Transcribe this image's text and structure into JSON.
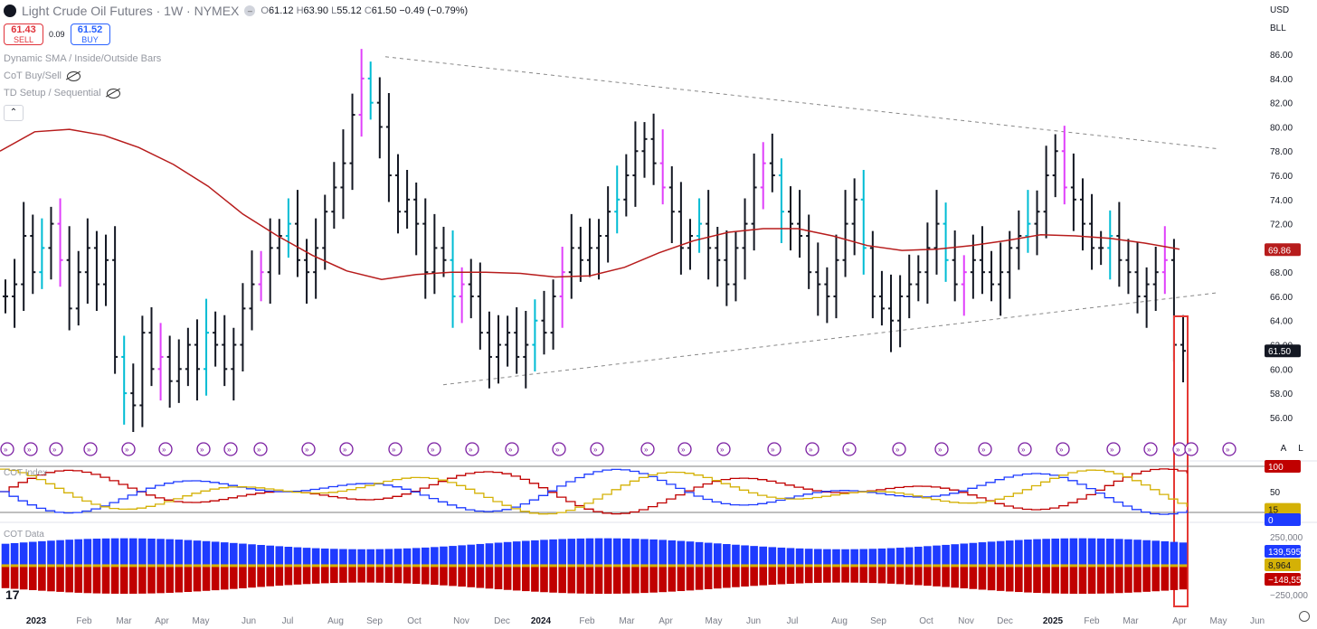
{
  "header": {
    "title": "Light Crude Oil Futures · 1W · NYMEX",
    "ohlc": [
      {
        "k": "O",
        "v": "61.12"
      },
      {
        "k": "H",
        "v": "63.90"
      },
      {
        "k": "L",
        "v": "55.12"
      },
      {
        "k": "C",
        "v": "61.50"
      }
    ],
    "change": "−0.49 (−0.79%)"
  },
  "trade": {
    "sell_price": "61.43",
    "sell_label": "SELL",
    "spread": "0.09",
    "buy_price": "61.52",
    "buy_label": "BUY"
  },
  "indicators": [
    "Dynamic SMA / Inside/Outside Bars",
    "CoT Buy/Sell",
    "TD Setup / Sequential"
  ],
  "scale": {
    "currency": "USD",
    "unit": "BLL"
  },
  "axis_buttons": {
    "auto": "A",
    "log": "L"
  },
  "panes": {
    "cot_index": "COT Index",
    "cot_data": "COT Data"
  },
  "colors": {
    "bull_bar": "#00bcd4",
    "bear_bar": "#e040fb",
    "sma": "#b71c1c",
    "cot_blue": "#1e3bff",
    "cot_red": "#c00000",
    "cot_yellow": "#d4b106",
    "highlight": "#e53935"
  },
  "chart_data": {
    "type": "ohlc",
    "interval": "1W",
    "y_ticks": [
      56,
      58,
      60,
      62,
      64,
      66,
      68,
      70,
      72,
      74,
      76,
      78,
      80,
      82,
      84,
      86
    ],
    "y_tick_labels": [
      "56.00",
      "58.00",
      "60.00",
      "62.00",
      "64.00",
      "66.00",
      "68.00",
      "70.00",
      "72.00",
      "74.00",
      "76.00",
      "78.00",
      "80.00",
      "82.00",
      "84.00",
      "86.00"
    ],
    "ylim": [
      54.2,
      87.5
    ],
    "x_labels": [
      "2023",
      "Feb",
      "Mar",
      "Apr",
      "May",
      "Jun",
      "Jul",
      "Aug",
      "Sep",
      "Oct",
      "Nov",
      "Dec",
      "2024",
      "Feb",
      "Mar",
      "Apr",
      "May",
      "Jun",
      "Jul",
      "Aug",
      "Sep",
      "Oct",
      "Nov",
      "Dec",
      "2025",
      "Feb",
      "Mar",
      "Apr",
      "May",
      "Jun"
    ],
    "bold_x_labels": [
      "2023",
      "2024",
      "2025"
    ],
    "last_price": "61.50",
    "sma_value": "69.86",
    "closes": [
      66,
      67,
      71,
      68,
      70,
      72,
      69,
      65,
      68,
      70,
      67,
      69,
      61,
      58,
      57,
      63,
      60,
      61,
      59,
      60,
      62,
      60,
      63,
      62,
      60,
      62,
      65,
      67,
      68,
      70,
      71,
      72,
      69,
      68,
      70,
      73,
      75,
      77,
      81,
      84,
      82,
      80,
      76,
      73,
      74,
      72,
      68,
      70,
      69,
      66,
      67,
      66,
      63,
      61,
      62,
      63,
      61,
      62,
      64,
      63,
      66,
      68,
      70,
      69,
      70,
      71,
      73,
      74,
      76,
      78,
      79,
      77,
      75,
      73,
      70,
      71,
      72,
      70,
      69,
      67,
      70,
      72,
      75,
      77,
      76,
      73,
      72,
      71,
      68,
      67,
      66,
      69,
      72,
      74,
      70,
      66,
      65,
      64,
      66,
      67,
      68,
      70,
      72,
      69,
      67,
      68,
      69,
      68,
      67,
      68,
      70,
      71,
      72,
      73,
      76,
      78,
      75,
      74,
      72,
      70,
      70,
      71,
      69,
      68,
      66,
      67,
      68,
      69,
      62,
      61.5
    ],
    "sma": [
      78,
      79.6,
      79.8,
      79.3,
      78.3,
      76.9,
      75.1,
      72.8,
      71,
      69.4,
      68.1,
      67.4,
      67.8,
      68,
      68,
      67.9,
      67.6,
      67.7,
      68.4,
      69.6,
      70.6,
      71.3,
      71.6,
      71.6,
      71,
      70.2,
      69.8,
      69.9,
      70.2,
      70.6,
      71.1,
      71,
      70.8,
      70.4,
      69.9
    ],
    "cot_index": {
      "ticks": [
        {
          "v": 100,
          "l": "100"
        },
        {
          "v": 50,
          "l": "50"
        },
        {
          "v": 15,
          "l": "15"
        },
        {
          "v": 0,
          "l": "0"
        }
      ],
      "last_red": "100",
      "last_yellow": "15",
      "last_blue": "0"
    },
    "cot_data": {
      "ticks": [
        {
          "v": 250000,
          "l": "250,000"
        },
        {
          "v": 0,
          "l": "0"
        },
        {
          "v": -250000,
          "l": "−250,000"
        }
      ],
      "last_blue": "139,595",
      "last_yellow": "8,964",
      "last_red": "−148,559"
    }
  }
}
